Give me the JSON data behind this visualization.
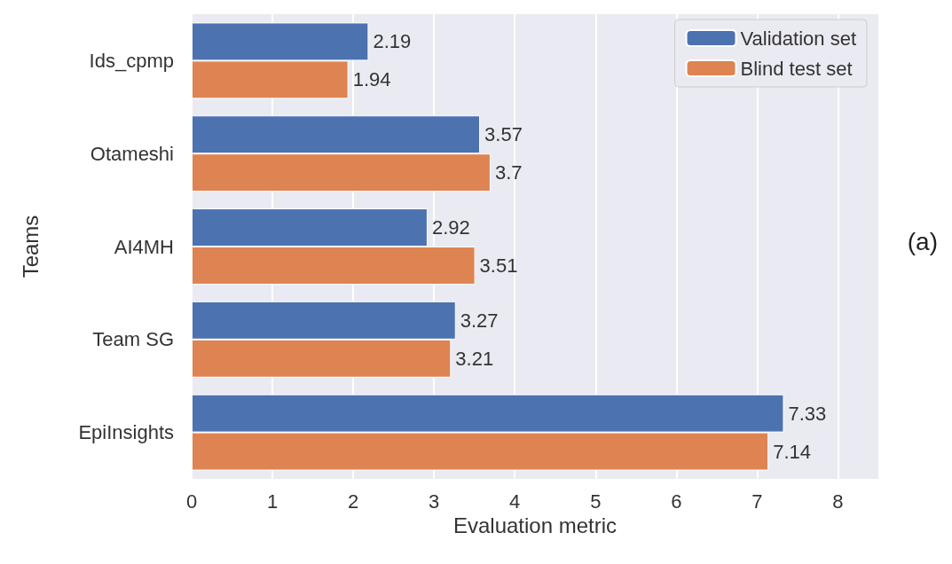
{
  "chart_data": {
    "type": "bar",
    "orientation": "horizontal",
    "xlabel": "Evaluation metric",
    "ylabel": "Teams",
    "categories": [
      "Ids_cpmp",
      "Otameshi",
      "AI4MH",
      "Team SG",
      "EpiInsights"
    ],
    "series": [
      {
        "name": "Validation set",
        "color": "#4c72b0",
        "values": [
          2.19,
          3.57,
          2.92,
          3.27,
          7.33
        ]
      },
      {
        "name": "Blind test set",
        "color": "#dd8452",
        "values": [
          1.94,
          3.7,
          3.51,
          3.21,
          7.14
        ]
      }
    ],
    "xlim": [
      0,
      8.5
    ],
    "xticks": [
      0,
      1,
      2,
      3,
      4,
      5,
      6,
      7,
      8
    ],
    "grid": "x",
    "legend": "top right",
    "data_labels": true,
    "annotations": [
      "(a)"
    ]
  }
}
